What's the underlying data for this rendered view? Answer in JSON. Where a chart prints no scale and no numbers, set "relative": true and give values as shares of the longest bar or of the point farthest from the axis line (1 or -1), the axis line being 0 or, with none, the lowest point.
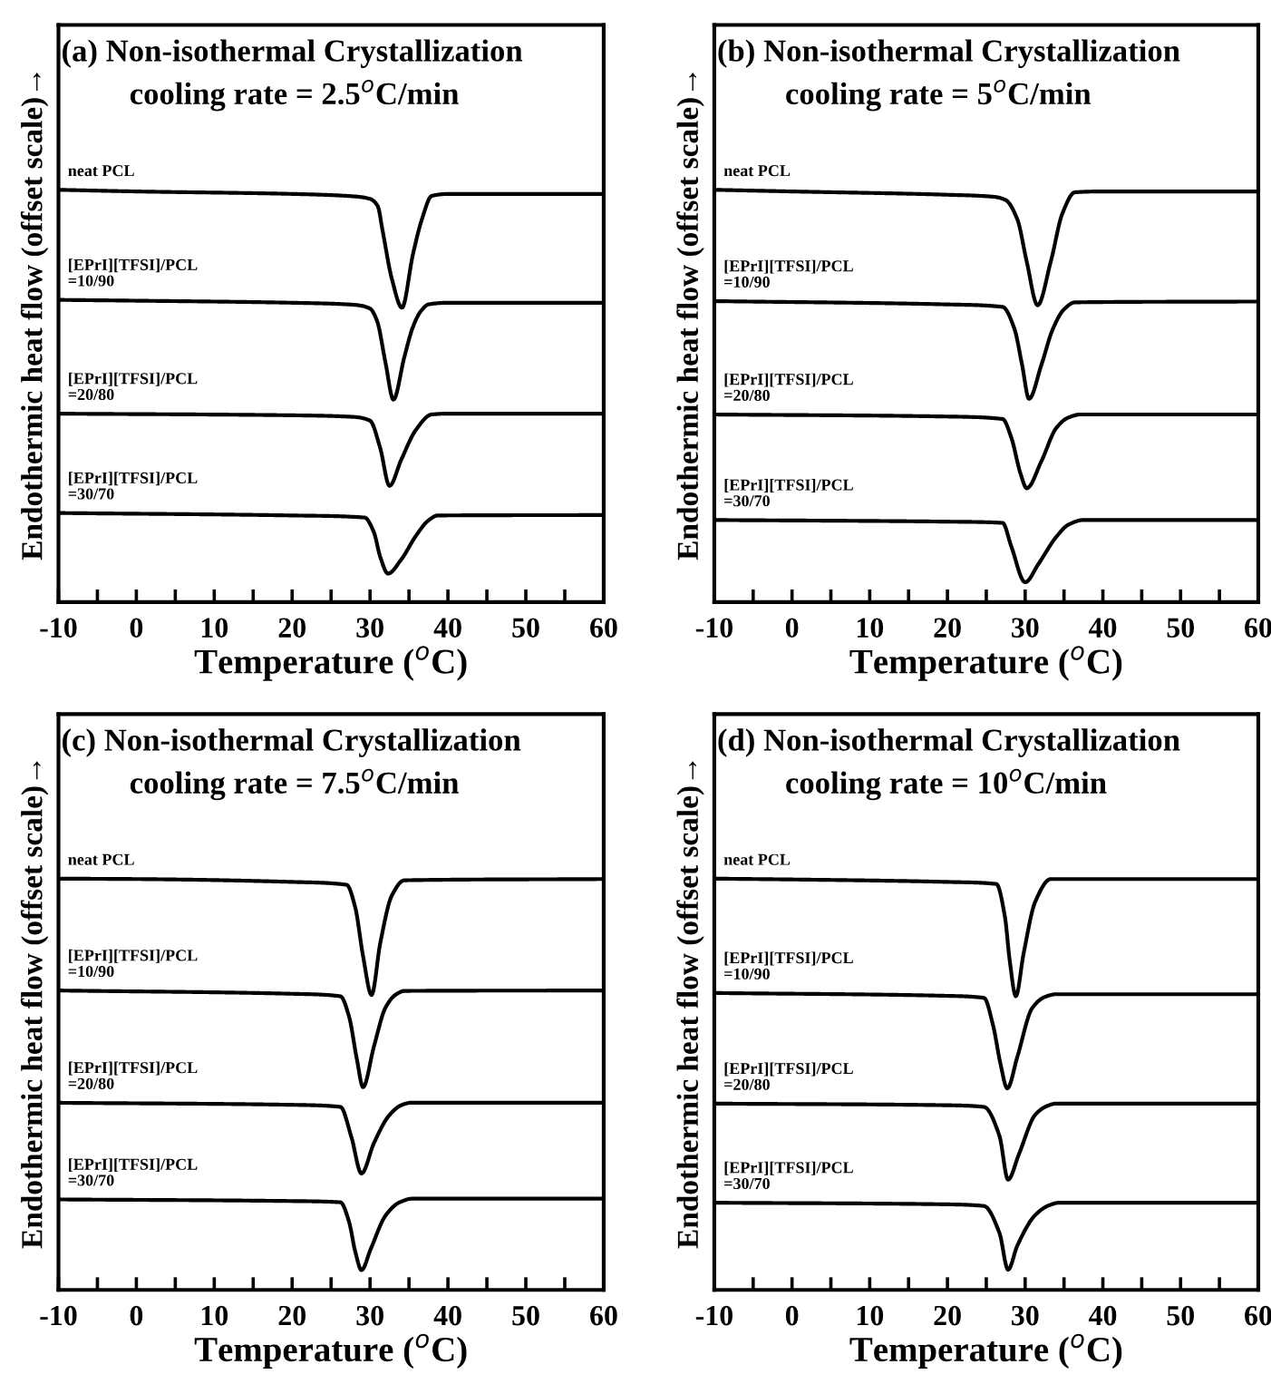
{
  "chart_data": [
    {
      "type": "line",
      "title": "(a) Non-isothermal Crystallization",
      "subtitle": "cooling rate = 2.5$^{o}$C/min",
      "xlabel": "Temperature ($^{o}$C)",
      "ylabel": "Endothermic heat flow (offset scale)→",
      "relative": true,
      "xlim": [
        -10,
        60
      ],
      "xticks": [
        -10,
        {
          "value": -5,
          "label": null
        },
        0,
        {
          "value": 5,
          "label": null
        },
        10,
        {
          "value": 15,
          "label": null
        },
        20,
        {
          "value": 25,
          "label": null
        },
        30,
        {
          "value": 35,
          "label": null
        },
        40,
        {
          "value": 45,
          "label": null
        },
        50,
        {
          "value": 55,
          "label": null
        },
        60
      ],
      "tick_labels": "x",
      "series": [
        {
          "name": "neat PCL",
          "color": "#000000",
          "x": [
            -10,
            0,
            20,
            28,
            30,
            31,
            31.6,
            32.8,
            34.1,
            35.5,
            36.7,
            37.9,
            40,
            60
          ],
          "values": [
            1.0,
            0.996,
            0.99,
            0.984,
            0.978,
            0.96,
            0.902,
            0.784,
            0.714,
            0.843,
            0.931,
            0.985,
            0.99,
            0.99
          ]
        },
        {
          "name": "[EPrI][TFSI]/PCL\n=10/90",
          "color": "#000000",
          "x": [
            -10,
            0,
            20,
            28,
            30,
            30.9,
            32,
            33,
            34.4,
            35.5,
            36.5,
            37.5,
            40,
            60
          ],
          "values": [
            0.733,
            0.731,
            0.726,
            0.721,
            0.712,
            0.682,
            0.579,
            0.491,
            0.594,
            0.667,
            0.705,
            0.722,
            0.726,
            0.726
          ]
        },
        {
          "name": "[EPrI][TFSI]/PCL\n=20/80",
          "color": "#000000",
          "x": [
            -10,
            20,
            28,
            30,
            31.3,
            32.5,
            34,
            35.9,
            37.9,
            40,
            60
          ],
          "values": [
            0.457,
            0.453,
            0.449,
            0.44,
            0.374,
            0.282,
            0.345,
            0.418,
            0.455,
            0.457,
            0.457
          ]
        },
        {
          "name": "[EPrI][TFSI]/PCL\n=30/70",
          "color": "#000000",
          "x": [
            -10,
            20,
            29.3,
            30.5,
            31.3,
            32.3,
            34,
            35.9,
            37.5,
            38.7,
            60
          ],
          "values": [
            0.216,
            0.21,
            0.205,
            0.169,
            0.11,
            0.069,
            0.103,
            0.161,
            0.198,
            0.21,
            0.211
          ]
        }
      ]
    },
    {
      "type": "line",
      "title": "(b) Non-isothermal Crystallization",
      "subtitle": "cooling rate = 5$^{o}$C/min",
      "xlabel": "Temperature ($^{o}$C)",
      "ylabel": "Endothermic heat flow (offset scale)→",
      "relative": true,
      "xlim": [
        -10,
        60
      ],
      "xticks": [
        -10,
        {
          "value": -5,
          "label": null
        },
        0,
        {
          "value": 5,
          "label": null
        },
        10,
        {
          "value": 15,
          "label": null
        },
        20,
        {
          "value": 25,
          "label": null
        },
        30,
        {
          "value": 35,
          "label": null
        },
        40,
        {
          "value": 45,
          "label": null
        },
        50,
        {
          "value": 55,
          "label": null
        },
        60
      ],
      "tick_labels": "x",
      "series": [
        {
          "name": "neat PCL",
          "color": "#000000",
          "x": [
            -10,
            0,
            20,
            26,
            27.5,
            29,
            30.2,
            31.6,
            33.3,
            34.8,
            36.4,
            40,
            60
          ],
          "values": [
            1.0,
            0.996,
            0.988,
            0.983,
            0.975,
            0.928,
            0.826,
            0.72,
            0.826,
            0.943,
            0.994,
            0.996,
            0.996
          ]
        },
        {
          "name": "[EPrI][TFSI]/PCL\n=10/90",
          "color": "#000000",
          "x": [
            -10,
            20,
            27.1,
            28.6,
            29.6,
            30.5,
            32.1,
            33.6,
            35,
            36.4,
            60
          ],
          "values": [
            0.73,
            0.722,
            0.716,
            0.664,
            0.576,
            0.493,
            0.576,
            0.664,
            0.71,
            0.727,
            0.729
          ]
        },
        {
          "name": "[EPrI][TFSI]/PCL\n=20/80",
          "color": "#000000",
          "x": [
            -10,
            20,
            27.1,
            28.2,
            29.4,
            30.2,
            32.1,
            34,
            35.5,
            37.1,
            60
          ],
          "values": [
            0.455,
            0.45,
            0.444,
            0.4,
            0.312,
            0.276,
            0.342,
            0.422,
            0.447,
            0.455,
            0.455
          ]
        },
        {
          "name": "[EPrI][TFSI]/PCL\n=30/70",
          "color": "#000000",
          "x": [
            -10,
            20,
            27.1,
            28.2,
            30,
            31.7,
            34,
            35.6,
            37.5,
            60
          ],
          "values": [
            0.199,
            0.195,
            0.192,
            0.136,
            0.048,
            0.092,
            0.158,
            0.188,
            0.199,
            0.199
          ]
        }
      ]
    },
    {
      "type": "line",
      "title": "(c) Non-isothermal Crystallization",
      "subtitle": "cooling rate = 7.5$^{o}$C/min",
      "xlabel": "Temperature ($^{o}$C)",
      "ylabel": "Endothermic heat flow (offset scale)→",
      "relative": true,
      "xlim": [
        -10,
        60
      ],
      "xticks": [
        -10,
        {
          "value": -5,
          "label": null
        },
        0,
        {
          "value": 5,
          "label": null
        },
        10,
        {
          "value": 15,
          "label": null
        },
        20,
        {
          "value": 25,
          "label": null
        },
        30,
        {
          "value": 35,
          "label": null
        },
        40,
        {
          "value": 45,
          "label": null
        },
        50,
        {
          "value": 55,
          "label": null
        },
        60
      ],
      "tick_labels": "x",
      "series": [
        {
          "name": "neat PCL",
          "color": "#000000",
          "x": [
            -10,
            0,
            20,
            27,
            28.1,
            29.1,
            30.2,
            31.3,
            32.8,
            34.4,
            60
          ],
          "values": [
            1.0,
            0.999,
            0.992,
            0.985,
            0.93,
            0.812,
            0.717,
            0.842,
            0.959,
            0.996,
            0.999
          ]
        },
        {
          "name": "[EPrI][TFSI]/PCL\n=10/90",
          "color": "#000000",
          "x": [
            -10,
            20,
            26.2,
            27.3,
            28.3,
            29.1,
            30.5,
            32,
            33.3,
            34.4,
            60
          ],
          "values": [
            0.728,
            0.72,
            0.714,
            0.665,
            0.562,
            0.493,
            0.592,
            0.687,
            0.718,
            0.727,
            0.728
          ]
        },
        {
          "name": "[EPrI][TFSI]/PCL\n=20/80",
          "color": "#000000",
          "x": [
            -10,
            20,
            26.2,
            27.6,
            28.9,
            30.5,
            32.4,
            34,
            35.2,
            60
          ],
          "values": [
            0.455,
            0.45,
            0.445,
            0.372,
            0.283,
            0.357,
            0.423,
            0.449,
            0.455,
            0.455
          ]
        },
        {
          "name": "[EPrI][TFSI]/PCL\n=30/70",
          "color": "#000000",
          "x": [
            -10,
            20,
            26.2,
            27.3,
            28.1,
            28.9,
            30.1,
            32,
            33.8,
            35.5,
            60
          ],
          "values": [
            0.22,
            0.216,
            0.213,
            0.166,
            0.093,
            0.048,
            0.1,
            0.181,
            0.213,
            0.222,
            0.222
          ]
        }
      ]
    },
    {
      "type": "line",
      "title": "(d) Non-isothermal Crystallization",
      "subtitle": "cooling rate = 10$^{o}$C/min",
      "xlabel": "Temperature ($^{o}$C)",
      "ylabel": "Endothermic heat flow (offset scale)→",
      "relative": true,
      "xlim": [
        -10,
        60
      ],
      "xticks": [
        -10,
        {
          "value": -5,
          "label": null
        },
        0,
        {
          "value": 5,
          "label": null
        },
        10,
        {
          "value": 15,
          "label": null
        },
        20,
        {
          "value": 25,
          "label": null
        },
        30,
        {
          "value": 35,
          "label": null
        },
        40,
        {
          "value": 45,
          "label": null
        },
        50,
        {
          "value": 55,
          "label": null
        },
        60
      ],
      "tick_labels": "x",
      "series": [
        {
          "name": "neat PCL",
          "color": "#000000",
          "x": [
            -10,
            0,
            20,
            26.3,
            27.4,
            28,
            28.8,
            29.8,
            31.3,
            33.3,
            60
          ],
          "values": [
            1.0,
            0.998,
            0.992,
            0.987,
            0.907,
            0.803,
            0.714,
            0.818,
            0.944,
            0.999,
            0.999
          ]
        },
        {
          "name": "[EPrI][TFSI]/PCL\n=10/90",
          "color": "#000000",
          "x": [
            -10,
            20,
            24.7,
            25.9,
            26.8,
            27.7,
            29,
            30.9,
            32.5,
            34,
            60
          ],
          "values": [
            0.722,
            0.715,
            0.71,
            0.641,
            0.552,
            0.49,
            0.567,
            0.685,
            0.712,
            0.719,
            0.719
          ]
        },
        {
          "name": "[EPrI][TFSI]/PCL\n=20/80",
          "color": "#000000",
          "x": [
            -10,
            20,
            24.7,
            26.7,
            27.8,
            29.2,
            31.3,
            32.8,
            34,
            60
          ],
          "values": [
            0.453,
            0.449,
            0.445,
            0.374,
            0.268,
            0.33,
            0.426,
            0.447,
            0.453,
            0.453
          ]
        },
        {
          "name": "[EPrI][TFSI]/PCL\n=30/70",
          "color": "#000000",
          "x": [
            -10,
            20,
            24.7,
            26.7,
            27.8,
            29,
            31.3,
            33,
            34.4,
            60
          ],
          "values": [
            0.212,
            0.208,
            0.204,
            0.138,
            0.049,
            0.108,
            0.182,
            0.205,
            0.212,
            0.212
          ]
        }
      ]
    }
  ]
}
